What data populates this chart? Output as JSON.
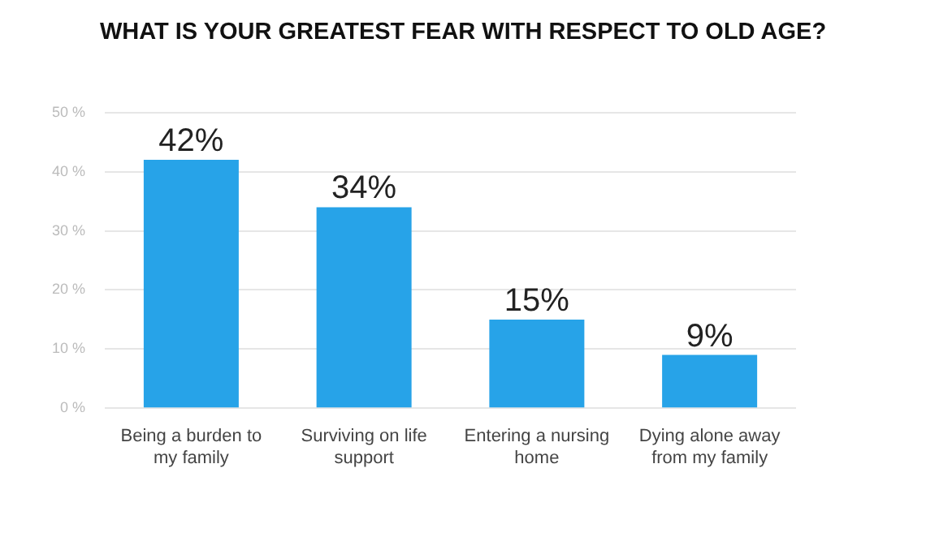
{
  "chart_data": {
    "type": "bar",
    "title": "WHAT IS YOUR GREATEST FEAR WITH RESPECT TO OLD AGE?",
    "categories": [
      "Being a burden to my family",
      "Surviving on life support",
      "Entering a nursing home",
      "Dying alone away from my family"
    ],
    "values": [
      42,
      34,
      15,
      9
    ],
    "value_labels": [
      "42%",
      "34%",
      "15%",
      "9%"
    ],
    "color": "#27a3e8",
    "ylim": [
      0,
      50
    ],
    "yticks": [
      {
        "value": 0,
        "label": "0 %"
      },
      {
        "value": 10,
        "label": "10 %"
      },
      {
        "value": 20,
        "label": "20 %"
      },
      {
        "value": 30,
        "label": "30 %"
      },
      {
        "value": 40,
        "label": "40 %"
      },
      {
        "value": 50,
        "label": "50 %"
      }
    ],
    "grid": "y",
    "legend": false
  }
}
